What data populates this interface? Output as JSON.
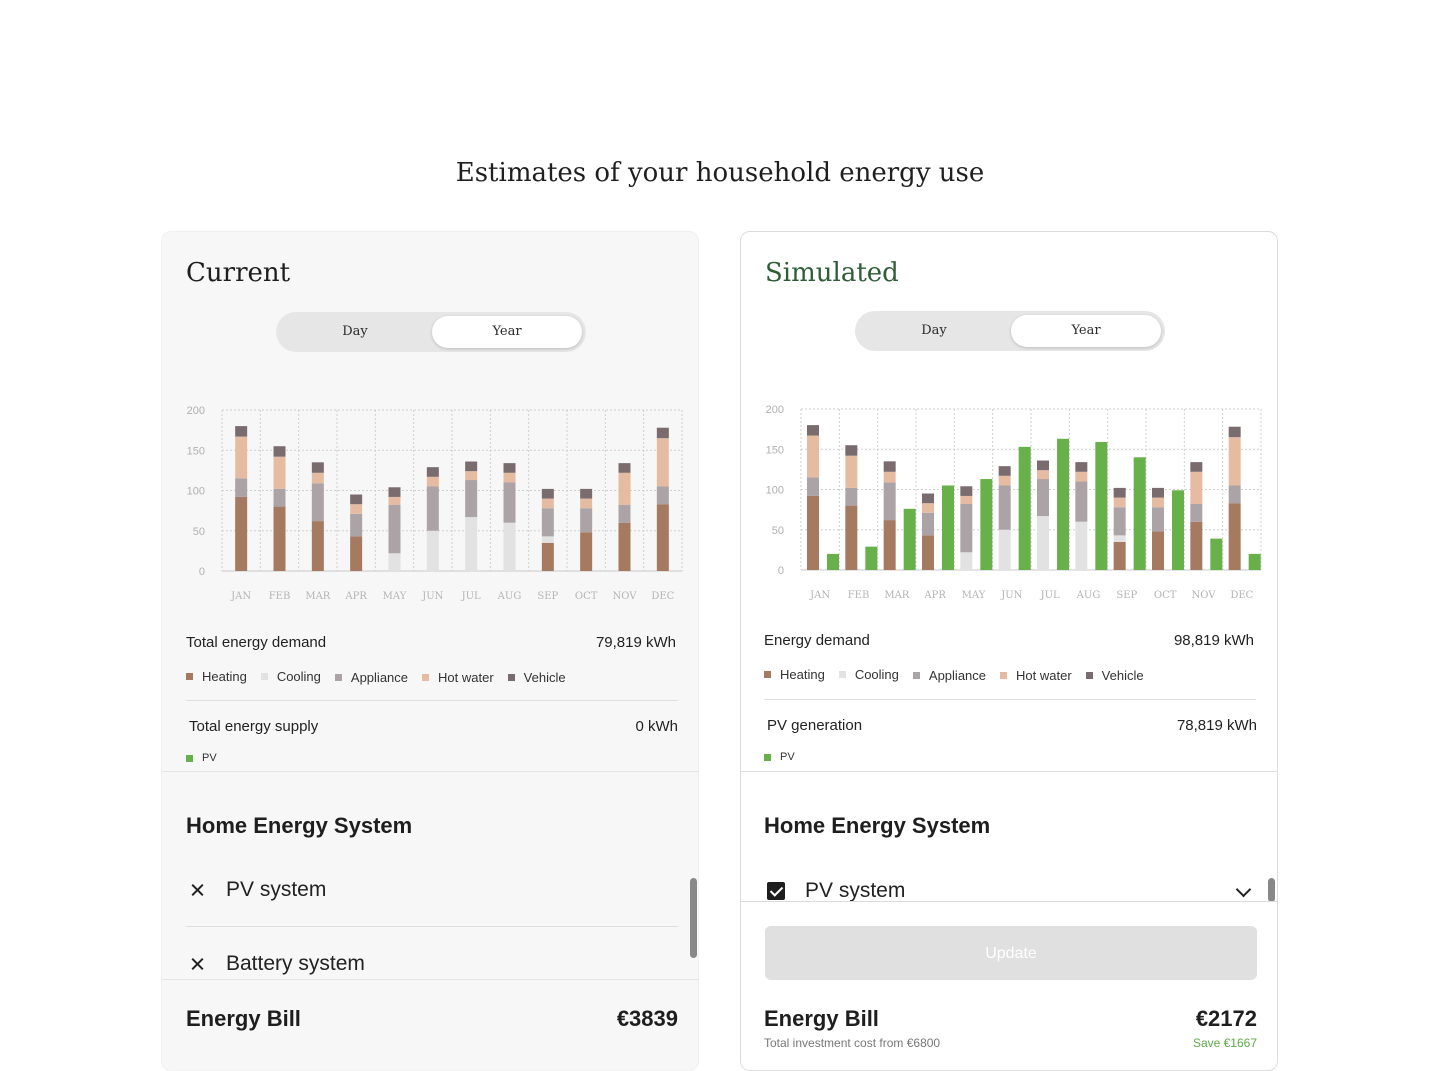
{
  "page_title": "Estimates of your household energy use",
  "colors": {
    "heating": "#a57a60",
    "cooling": "#e2e2e2",
    "appliance": "#aca3a6",
    "hot_water": "#e5bca2",
    "vehicle": "#7a6c6e",
    "pv": "#68b14a",
    "simulated_title": "#2f5d36"
  },
  "toggle": {
    "day": "Day",
    "year": "Year",
    "selected": "Year"
  },
  "legend_labels": {
    "heating": "Heating",
    "cooling": "Cooling",
    "appliance": "Appliance",
    "hot_water": "Hot water",
    "vehicle": "Vehicle",
    "pv": "PV"
  },
  "current": {
    "title": "Current",
    "demand_label": "Total energy demand",
    "demand_value": "79,819 kWh",
    "supply_label": "Total energy supply",
    "supply_value": "0 kWh",
    "hes_title": "Home Energy System",
    "systems": [
      {
        "label": "PV system",
        "status": "x-icon"
      },
      {
        "label": "Battery system",
        "status": "x-icon"
      }
    ],
    "bill_label": "Energy Bill",
    "bill_value": "€3839"
  },
  "simulated": {
    "title": "Simulated",
    "demand_label": "Energy demand",
    "demand_value": "98,819 kWh",
    "supply_label": "PV generation",
    "supply_value": "78,819 kWh",
    "hes_title": "Home Energy System",
    "systems": [
      {
        "label": "PV system",
        "status": "checked"
      }
    ],
    "update_label": "Update",
    "bill_label": "Energy Bill",
    "bill_value": "€2172",
    "bill_sub": "Total investment cost from €6800",
    "bill_save": "Save €1667"
  },
  "chart_data": [
    {
      "type": "bar",
      "stacked": true,
      "categories": [
        "JAN",
        "FEB",
        "MAR",
        "APR",
        "MAY",
        "JUN",
        "JUL",
        "AUG",
        "SEP",
        "OCT",
        "NOV",
        "DEC"
      ],
      "ylim": [
        0,
        200
      ],
      "yticks": [
        0,
        50,
        100,
        150,
        200
      ],
      "grid": true,
      "series": [
        {
          "name": "Heating",
          "key": "heating",
          "values": [
            92,
            80,
            62,
            43,
            0,
            0,
            0,
            0,
            35,
            48,
            60,
            83
          ]
        },
        {
          "name": "Cooling",
          "key": "cooling",
          "values": [
            0,
            0,
            0,
            0,
            22,
            50,
            67,
            60,
            8,
            0,
            0,
            0
          ]
        },
        {
          "name": "Appliance",
          "key": "appliance",
          "values": [
            23,
            22,
            47,
            28,
            60,
            55,
            46,
            50,
            35,
            30,
            22,
            22
          ]
        },
        {
          "name": "Hot water",
          "key": "hot_water",
          "values": [
            52,
            40,
            13,
            12,
            10,
            12,
            11,
            12,
            12,
            12,
            40,
            60
          ]
        },
        {
          "name": "Vehicle",
          "key": "vehicle",
          "values": [
            13,
            13,
            13,
            12,
            12,
            12,
            12,
            12,
            12,
            12,
            12,
            13
          ]
        }
      ]
    },
    {
      "type": "bar",
      "stacked": true,
      "categories": [
        "JAN",
        "FEB",
        "MAR",
        "APR",
        "MAY",
        "JUN",
        "JUL",
        "AUG",
        "SEP",
        "OCT",
        "NOV",
        "DEC"
      ],
      "ylim": [
        0,
        200
      ],
      "yticks": [
        0,
        50,
        100,
        150,
        200
      ],
      "grid": true,
      "series": [
        {
          "name": "Heating",
          "key": "heating",
          "values": [
            92,
            80,
            62,
            43,
            0,
            0,
            0,
            0,
            35,
            48,
            60,
            83
          ]
        },
        {
          "name": "Cooling",
          "key": "cooling",
          "values": [
            0,
            0,
            0,
            0,
            22,
            50,
            67,
            60,
            8,
            0,
            0,
            0
          ]
        },
        {
          "name": "Appliance",
          "key": "appliance",
          "values": [
            23,
            22,
            47,
            28,
            60,
            55,
            46,
            50,
            35,
            30,
            22,
            22
          ]
        },
        {
          "name": "Hot water",
          "key": "hot_water",
          "values": [
            52,
            40,
            13,
            12,
            10,
            12,
            11,
            12,
            12,
            12,
            40,
            60
          ]
        },
        {
          "name": "Vehicle",
          "key": "vehicle",
          "values": [
            13,
            13,
            13,
            12,
            12,
            12,
            12,
            12,
            12,
            12,
            12,
            13
          ]
        }
      ],
      "pv_series": {
        "name": "PV",
        "key": "pv",
        "values": [
          20,
          29,
          76,
          105,
          113,
          153,
          163,
          159,
          140,
          99,
          39,
          20
        ]
      }
    }
  ]
}
